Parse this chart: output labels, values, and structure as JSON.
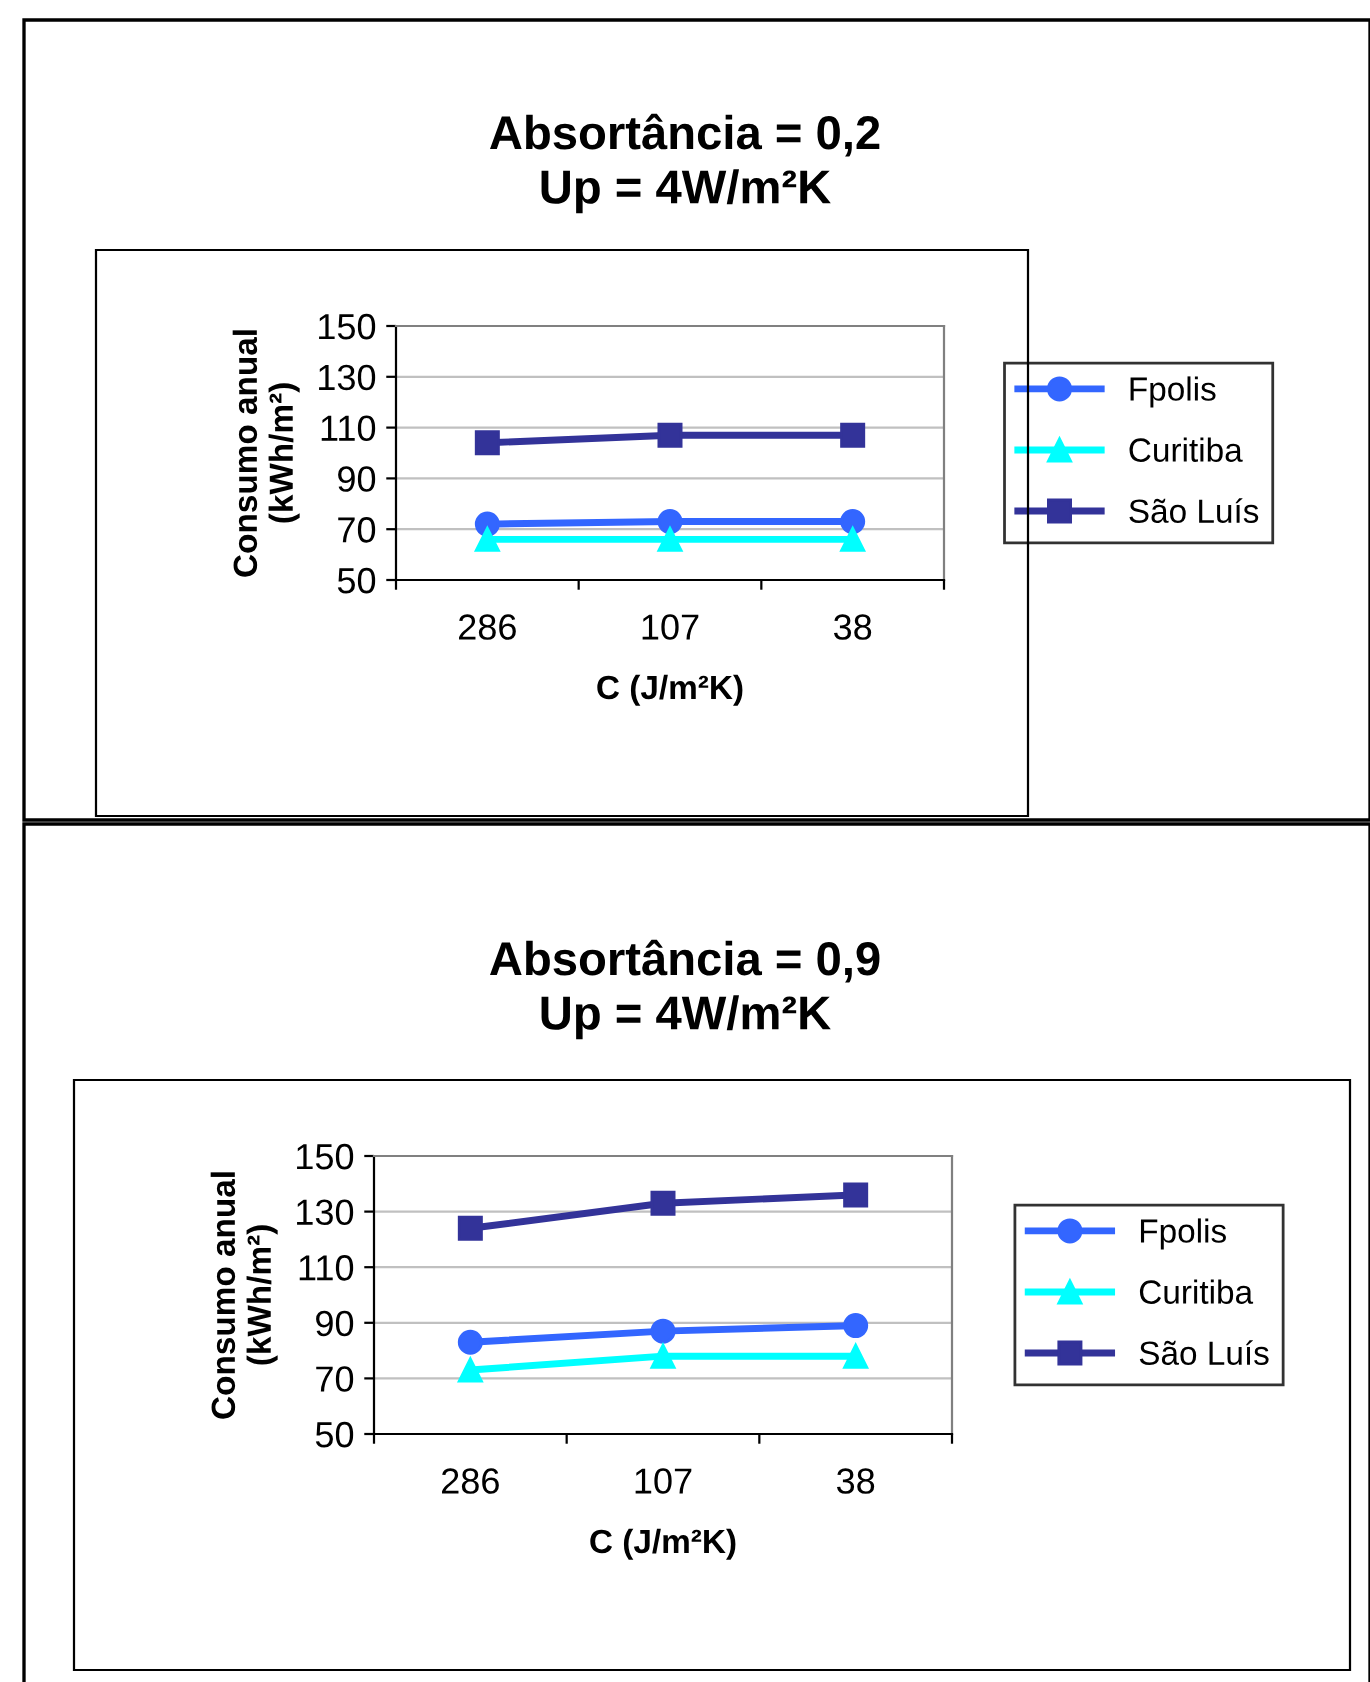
{
  "chart_data": [
    {
      "type": "line",
      "title": "Absortância = 0,2\nUp = 4W/m²K",
      "xlabel": "C (J/m²K)",
      "ylabel": "Consumo anual\n(kWh/m²)",
      "categories": [
        "286",
        "107",
        "38"
      ],
      "ylim": [
        50,
        150
      ],
      "yticks": [
        50,
        70,
        90,
        110,
        130,
        150
      ],
      "grid": "y",
      "legend": "right",
      "series": [
        {
          "name": "Fpolis",
          "color": "#3366ff",
          "marker": "circle",
          "values": [
            72,
            73,
            73
          ]
        },
        {
          "name": "Curitiba",
          "color": "#00ffff",
          "marker": "triangle",
          "values": [
            66,
            66,
            66
          ]
        },
        {
          "name": "São Luís",
          "color": "#333399",
          "marker": "square",
          "values": [
            104,
            107,
            107
          ]
        }
      ]
    },
    {
      "type": "line",
      "title": "Absortância = 0,9\nUp = 4W/m²K",
      "xlabel": "C (J/m²K)",
      "ylabel": "Consumo anual\n(kWh/m²)",
      "categories": [
        "286",
        "107",
        "38"
      ],
      "ylim": [
        50,
        150
      ],
      "yticks": [
        50,
        70,
        90,
        110,
        130,
        150
      ],
      "grid": "y",
      "legend": "right",
      "series": [
        {
          "name": "Fpolis",
          "color": "#3366ff",
          "marker": "circle",
          "values": [
            83,
            87,
            89
          ]
        },
        {
          "name": "Curitiba",
          "color": "#00ffff",
          "marker": "triangle",
          "values": [
            73,
            78,
            78
          ]
        },
        {
          "name": "São Luís",
          "color": "#333399",
          "marker": "square",
          "values": [
            124,
            133,
            136
          ]
        }
      ]
    }
  ]
}
